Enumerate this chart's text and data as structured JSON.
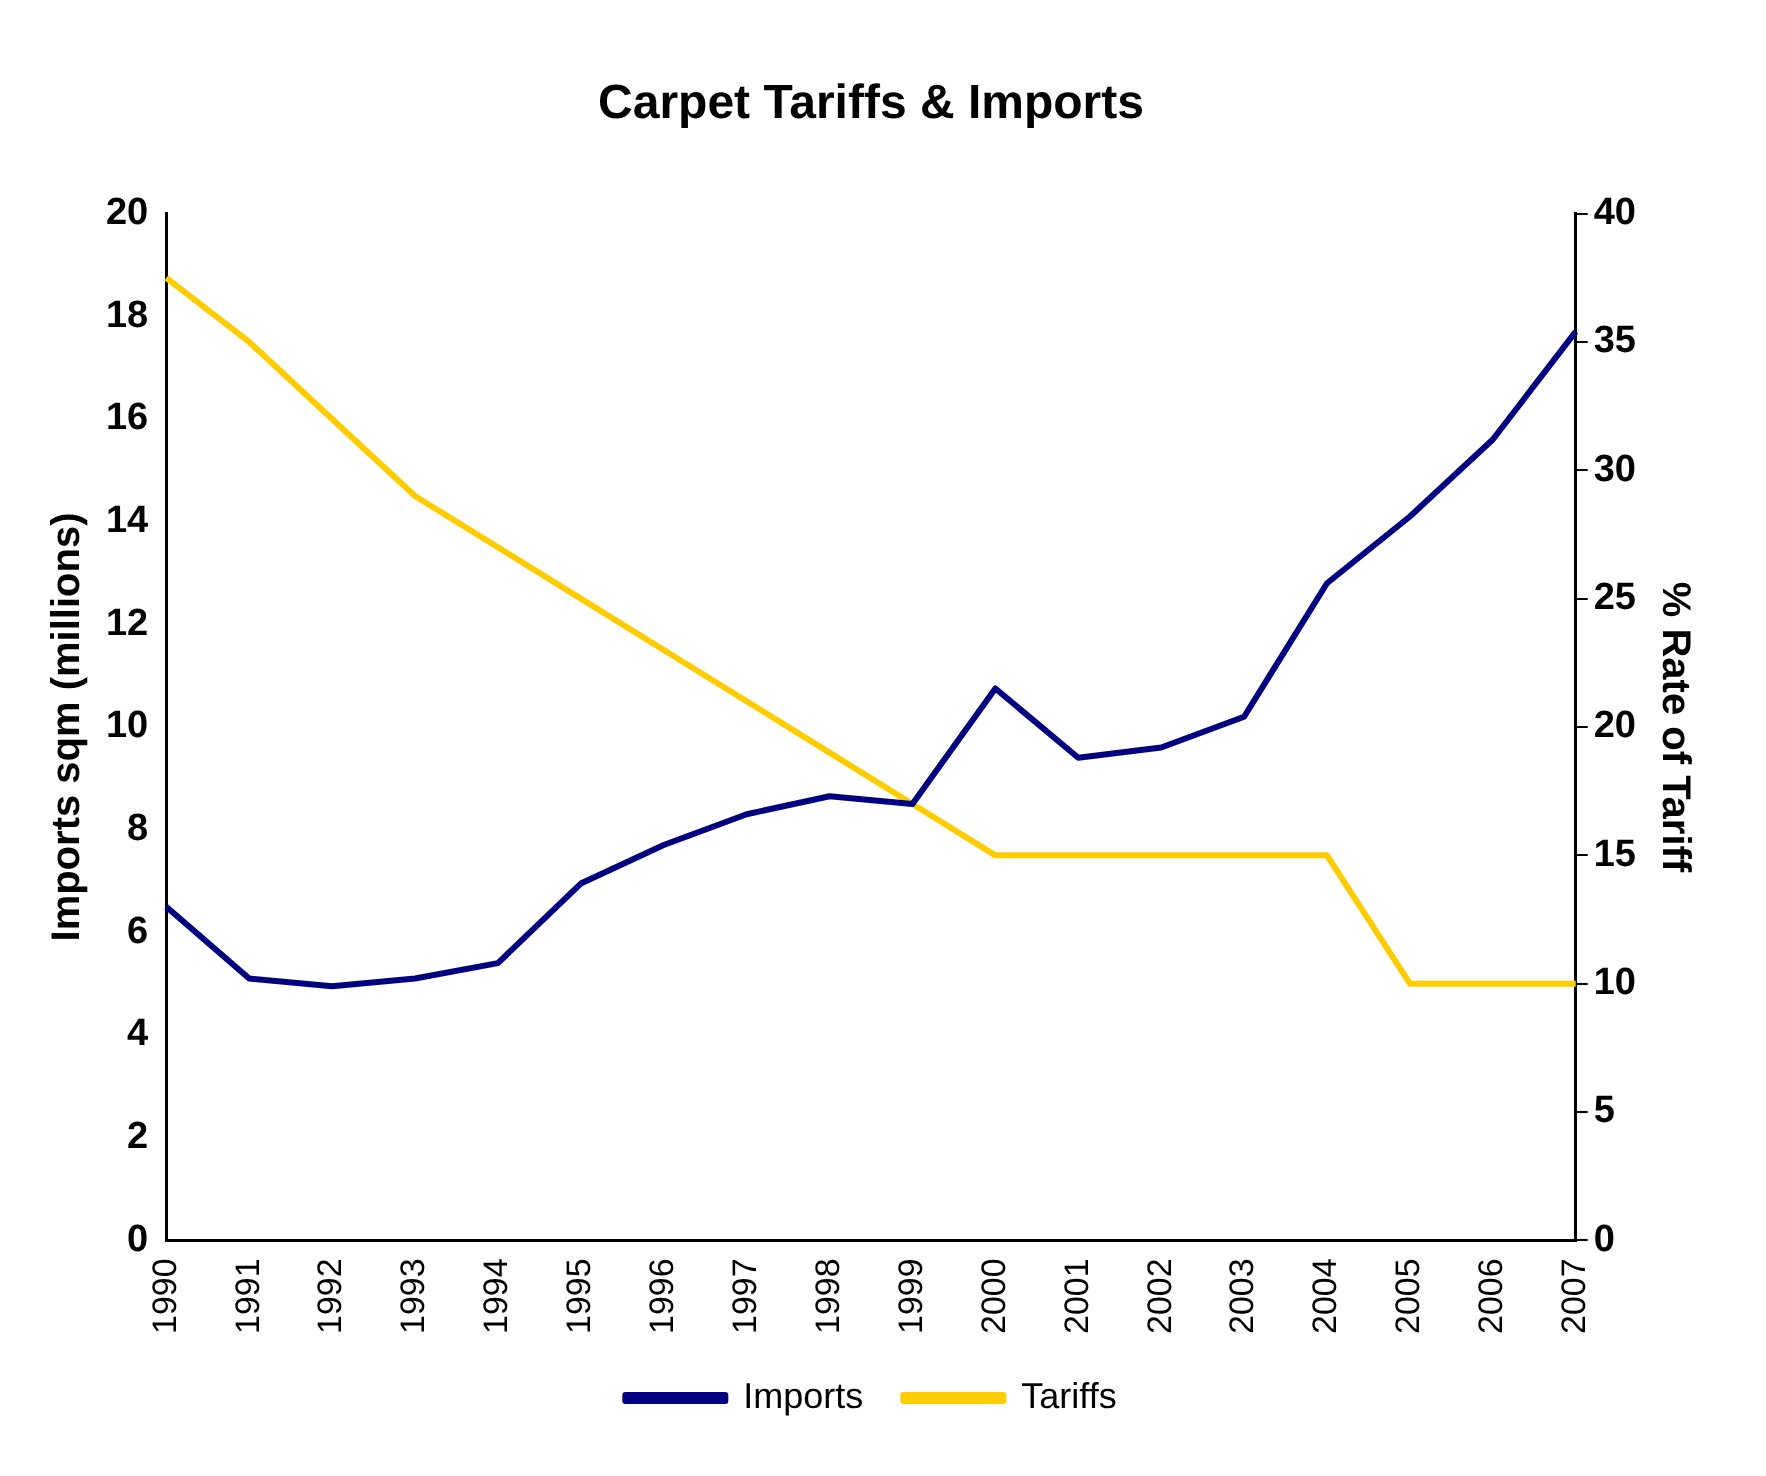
{
  "chart_data": {
    "type": "line",
    "title": "Carpet Tariffs & Imports",
    "ylabel": "Imports sqm (millions)",
    "y2label": "% Rate of Tariff",
    "categories": [
      "1990",
      "1991",
      "1992",
      "1993",
      "1994",
      "1995",
      "1996",
      "1997",
      "1998",
      "1999",
      "2000",
      "2001",
      "2002",
      "2003",
      "2004",
      "2005",
      "2006",
      "2007"
    ],
    "series": [
      {
        "name": "Imports",
        "color": "#000080",
        "values": [
          6.5,
          5.1,
          4.95,
          5.1,
          5.4,
          6.95,
          7.7,
          8.3,
          8.65,
          8.5,
          10.75,
          9.4,
          9.6,
          10.2,
          12.8,
          14.1,
          15.6,
          17.7
        ]
      },
      {
        "name": "Tariffs",
        "color": "#ffcc00",
        "axis": "y2",
        "values": [
          37.5,
          35,
          32,
          29,
          27,
          25,
          23,
          21,
          19,
          17,
          15,
          15,
          15,
          15,
          15,
          10,
          10,
          10
        ]
      }
    ],
    "ylim": [
      0,
      20
    ],
    "yticks": [
      0,
      2,
      4,
      6,
      8,
      10,
      12,
      14,
      16,
      18,
      20
    ],
    "y2lim": [
      0,
      40
    ],
    "y2ticks": [
      0,
      5,
      10,
      15,
      20,
      25,
      30,
      35,
      40
    ],
    "grid": false,
    "legend": "bottom",
    "marker": "none",
    "line_style": "solid"
  }
}
